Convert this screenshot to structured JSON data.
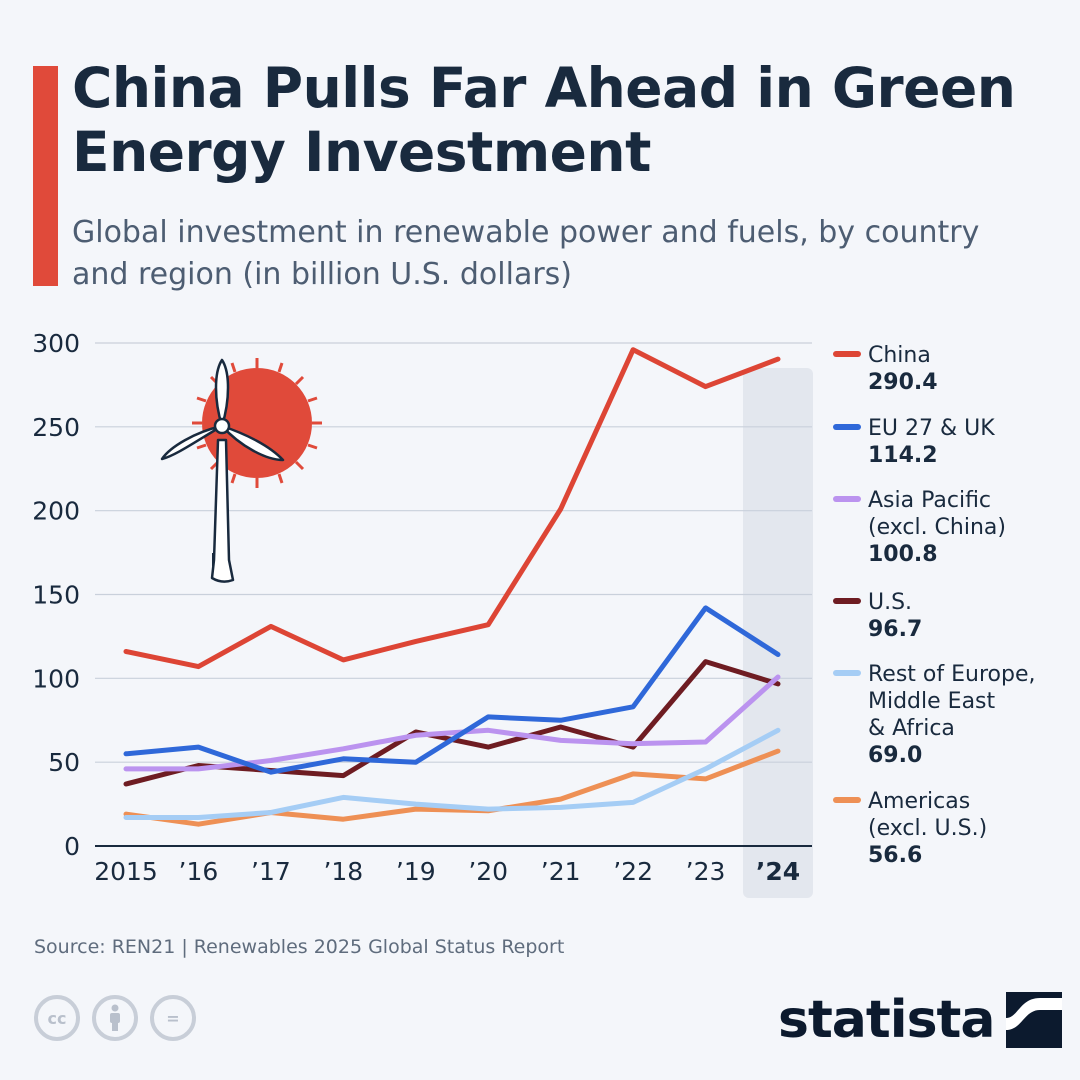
{
  "title": "China Pulls Far Ahead in Green Energy Investment",
  "subtitle": "Global investment in renewable power and fuels, by country and region (in billion U.S. dollars)",
  "source": "Source: REN21 | Renewables 2025 Global Status Report",
  "logo": "statista",
  "license_icons": [
    "cc-icon",
    "attribution-icon",
    "no-derivatives-icon"
  ],
  "license_labels": [
    "cc",
    "",
    "="
  ],
  "chart_data": {
    "type": "line",
    "title": "China Pulls Far Ahead in Green Energy Investment",
    "categories": [
      "2015",
      "’16",
      "’17",
      "’18",
      "’19",
      "’20",
      "’21",
      "’22",
      "’23",
      "’24"
    ],
    "ylim": [
      0,
      300
    ],
    "yticks": [
      0,
      50,
      100,
      150,
      200,
      250,
      300
    ],
    "grid": true,
    "highlight_category": "’24",
    "legend_position": "right",
    "series": [
      {
        "name": "China",
        "label_lines": [
          "China"
        ],
        "value_label": "290.4",
        "color": "#dd4535",
        "values": [
          116,
          107,
          131,
          111,
          122,
          132,
          201,
          296,
          274,
          290.4
        ]
      },
      {
        "name": "EU 27 & UK",
        "label_lines": [
          "EU 27 & UK"
        ],
        "value_label": "114.2",
        "color": "#2f68d9",
        "values": [
          55,
          59,
          44,
          52,
          50,
          77,
          75,
          83,
          142,
          114.2
        ]
      },
      {
        "name": "Asia Pacific (excl. China)",
        "label_lines": [
          "Asia Pacific",
          "(excl. China)"
        ],
        "value_label": "100.8",
        "color": "#bb93ef",
        "values": [
          46,
          46,
          51,
          58,
          66,
          69,
          63,
          61,
          62,
          100.8
        ]
      },
      {
        "name": "U.S.",
        "label_lines": [
          "U.S."
        ],
        "value_label": "96.7",
        "color": "#6e1c22",
        "values": [
          37,
          48,
          45,
          42,
          68,
          59,
          71,
          59,
          110,
          96.7
        ]
      },
      {
        "name": "Rest of Europe, Middle East & Africa",
        "label_lines": [
          "Rest of Europe,",
          "Middle East",
          "& Africa"
        ],
        "value_label": "69.0",
        "color": "#a5cdf5",
        "values": [
          17,
          17,
          20,
          29,
          25,
          22,
          23,
          26,
          46,
          69.0
        ]
      },
      {
        "name": "Americas (excl. U.S.)",
        "label_lines": [
          "Americas",
          "(excl. U.S.)"
        ],
        "value_label": "56.6",
        "color": "#ee9055",
        "values": [
          19,
          13,
          20,
          16,
          22,
          21,
          28,
          43,
          40,
          56.6
        ]
      }
    ]
  }
}
